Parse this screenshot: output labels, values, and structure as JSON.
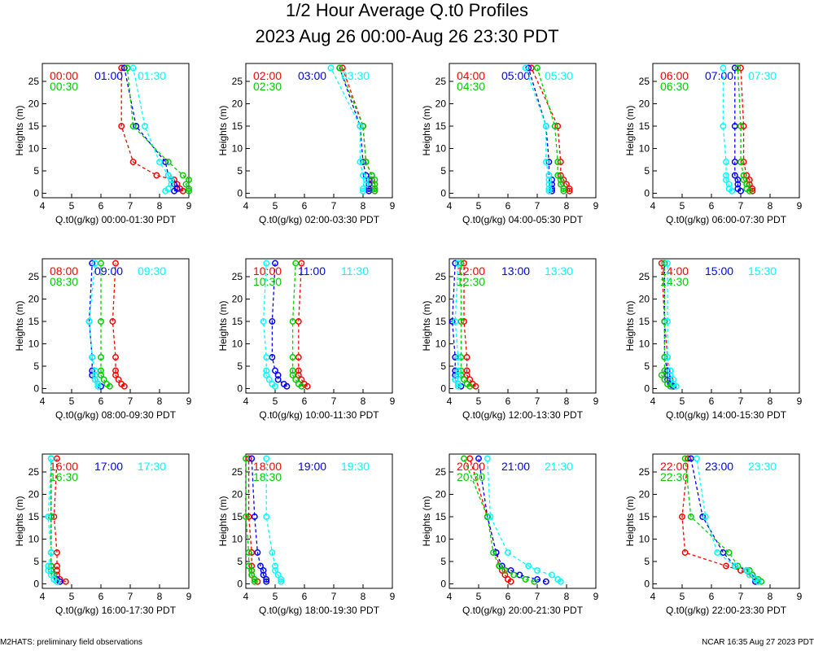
{
  "figure": {
    "title": "1/2 Hour Average Q.t0 Profiles",
    "subtitle": "2023 Aug 26 00:00-Aug 26 23:30 PDT",
    "footer_left": "M2HATS: preliminary field observations",
    "footer_right": "NCAR 16:35 Aug 27 2023 PDT"
  },
  "colors": {
    "s0": "#ff0000",
    "s1": "#0000ff",
    "s2": "#00cc00",
    "s3": "#00ffff"
  },
  "heights": [
    0.5,
    1,
    2,
    3,
    4,
    7,
    15,
    28
  ],
  "chart_data": [
    {
      "type": "line",
      "xlabel": "Q.t0(g/kg) 00:00-01:30 PDT",
      "ylabel": "Heights (m)",
      "xlim": [
        4,
        9
      ],
      "ylim": [
        -1,
        29
      ],
      "xticks": [
        "4",
        "5",
        "6",
        "7",
        "8",
        "9"
      ],
      "yticks": [
        "0",
        "5",
        "10",
        "15",
        "20",
        "25"
      ],
      "series": [
        {
          "name": "00:00",
          "values": [
            8.8,
            8.7,
            8.6,
            8.5,
            7.9,
            7.1,
            6.7,
            6.7
          ]
        },
        {
          "name": "01:00",
          "values": [
            8.5,
            8.6,
            8.5,
            8.4,
            8.3,
            8.2,
            7.2,
            6.8
          ]
        },
        {
          "name": "00:30",
          "values": [
            9.0,
            9.0,
            8.9,
            9.0,
            8.8,
            8.3,
            7.1,
            6.9
          ]
        },
        {
          "name": "01:30",
          "values": [
            8.2,
            8.3,
            8.4,
            8.4,
            8.3,
            8.0,
            7.5,
            7.1
          ]
        }
      ]
    },
    {
      "type": "line",
      "xlabel": "Q.t0(g/kg) 02:00-03:30 PDT",
      "ylabel": "Heights (m)",
      "xlim": [
        4,
        9
      ],
      "ylim": [
        -1,
        29
      ],
      "xticks": [
        "4",
        "5",
        "6",
        "7",
        "8",
        "9"
      ],
      "yticks": [
        "0",
        "5",
        "10",
        "15",
        "20",
        "25"
      ],
      "series": [
        {
          "name": "02:00",
          "values": [
            8.4,
            8.4,
            8.4,
            8.3,
            8.3,
            8.1,
            8.0,
            7.3
          ]
        },
        {
          "name": "03:00",
          "values": [
            8.2,
            8.2,
            8.2,
            8.2,
            8.1,
            8.0,
            7.9,
            7.2
          ]
        },
        {
          "name": "02:30",
          "values": [
            8.4,
            8.4,
            8.4,
            8.4,
            8.3,
            8.1,
            8.0,
            7.2
          ]
        },
        {
          "name": "03:30",
          "values": [
            8.0,
            8.0,
            8.1,
            8.1,
            8.0,
            7.9,
            7.9,
            6.9
          ]
        }
      ]
    },
    {
      "type": "line",
      "xlabel": "Q.t0(g/kg) 04:00-05:30 PDT",
      "ylabel": "Heights (m)",
      "xlim": [
        4,
        9
      ],
      "ylim": [
        -1,
        29
      ],
      "xticks": [
        "4",
        "5",
        "6",
        "7",
        "8",
        "9"
      ],
      "yticks": [
        "0",
        "5",
        "10",
        "15",
        "20",
        "25"
      ],
      "series": [
        {
          "name": "04:00",
          "values": [
            8.1,
            8.1,
            8.0,
            7.9,
            7.8,
            7.8,
            7.7,
            6.8
          ]
        },
        {
          "name": "05:00",
          "values": [
            7.5,
            7.5,
            7.5,
            7.5,
            7.4,
            7.4,
            7.3,
            6.7
          ]
        },
        {
          "name": "04:30",
          "values": [
            7.9,
            7.9,
            7.8,
            7.8,
            7.7,
            7.7,
            7.6,
            7.0
          ]
        },
        {
          "name": "05:30",
          "values": [
            7.4,
            7.4,
            7.4,
            7.4,
            7.4,
            7.3,
            7.3,
            6.6
          ]
        }
      ]
    },
    {
      "type": "line",
      "xlabel": "Q.t0(g/kg) 06:00-07:30 PDT",
      "ylabel": "Heights (m)",
      "xlim": [
        4,
        9
      ],
      "ylim": [
        -1,
        29
      ],
      "xticks": [
        "4",
        "5",
        "6",
        "7",
        "8",
        "9"
      ],
      "yticks": [
        "0",
        "5",
        "10",
        "15",
        "20",
        "25"
      ],
      "series": [
        {
          "name": "06:00",
          "values": [
            7.4,
            7.4,
            7.3,
            7.3,
            7.2,
            7.1,
            7.1,
            7.0
          ]
        },
        {
          "name": "07:00",
          "values": [
            7.0,
            6.9,
            6.9,
            6.9,
            6.8,
            6.8,
            6.8,
            6.8
          ]
        },
        {
          "name": "06:30",
          "values": [
            7.3,
            7.2,
            7.2,
            7.1,
            7.1,
            7.0,
            7.0,
            6.9
          ]
        },
        {
          "name": "07:30",
          "values": [
            6.7,
            6.6,
            6.6,
            6.5,
            6.5,
            6.5,
            6.4,
            6.4
          ]
        }
      ]
    },
    {
      "type": "line",
      "xlabel": "Q.t0(g/kg) 08:00-09:30 PDT",
      "ylabel": "Heights (m)",
      "xlim": [
        4,
        9
      ],
      "ylim": [
        -1,
        29
      ],
      "xticks": [
        "4",
        "5",
        "6",
        "7",
        "8",
        "9"
      ],
      "yticks": [
        "0",
        "5",
        "10",
        "15",
        "20",
        "25"
      ],
      "series": [
        {
          "name": "08:00",
          "values": [
            6.8,
            6.7,
            6.6,
            6.5,
            6.5,
            6.5,
            6.4,
            6.5
          ]
        },
        {
          "name": "09:00",
          "values": [
            6.0,
            5.9,
            5.8,
            5.7,
            5.7,
            5.7,
            5.6,
            5.7
          ]
        },
        {
          "name": "08:30",
          "values": [
            6.3,
            6.2,
            6.1,
            6.0,
            6.0,
            6.0,
            6.0,
            6.0
          ]
        },
        {
          "name": "09:30",
          "values": [
            5.9,
            5.9,
            5.8,
            5.8,
            5.8,
            5.7,
            5.6,
            5.8
          ]
        }
      ]
    },
    {
      "type": "line",
      "xlabel": "Q.t0(g/kg) 10:00-11:30 PDT",
      "ylabel": "Heights (m)",
      "xlim": [
        4,
        9
      ],
      "ylim": [
        -1,
        29
      ],
      "xticks": [
        "4",
        "5",
        "6",
        "7",
        "8",
        "9"
      ],
      "yticks": [
        "0",
        "5",
        "10",
        "15",
        "20",
        "25"
      ],
      "series": [
        {
          "name": "10:00",
          "values": [
            6.1,
            6.0,
            5.9,
            5.8,
            5.8,
            5.8,
            5.8,
            5.9
          ]
        },
        {
          "name": "11:00",
          "values": [
            5.4,
            5.3,
            5.1,
            5.1,
            5.0,
            4.9,
            4.9,
            5.0
          ]
        },
        {
          "name": "10:30",
          "values": [
            5.9,
            5.8,
            5.7,
            5.6,
            5.6,
            5.6,
            5.6,
            5.7
          ]
        },
        {
          "name": "11:30",
          "values": [
            5.0,
            4.9,
            4.8,
            4.7,
            4.7,
            4.7,
            4.6,
            4.7
          ]
        }
      ]
    },
    {
      "type": "line",
      "xlabel": "Q.t0(g/kg) 12:00-13:30 PDT",
      "ylabel": "Heights (m)",
      "xlim": [
        4,
        9
      ],
      "ylim": [
        -1,
        29
      ],
      "xticks": [
        "4",
        "5",
        "6",
        "7",
        "8",
        "9"
      ],
      "yticks": [
        "0",
        "5",
        "10",
        "15",
        "20",
        "25"
      ],
      "series": [
        {
          "name": "12:00",
          "values": [
            4.9,
            4.8,
            4.7,
            4.6,
            4.6,
            4.6,
            4.5,
            4.5
          ]
        },
        {
          "name": "13:00",
          "values": [
            4.4,
            4.3,
            4.2,
            4.2,
            4.2,
            4.2,
            4.1,
            4.2
          ]
        },
        {
          "name": "12:30",
          "values": [
            4.7,
            4.6,
            4.5,
            4.4,
            4.4,
            4.4,
            4.4,
            4.4
          ]
        },
        {
          "name": "13:30",
          "values": [
            4.3,
            4.3,
            4.2,
            4.3,
            4.3,
            4.3,
            4.2,
            4.3
          ]
        }
      ]
    },
    {
      "type": "line",
      "xlabel": "Q.t0(g/kg) 14:00-15:30 PDT",
      "ylabel": "Heights (m)",
      "xlim": [
        4,
        9
      ],
      "ylim": [
        -1,
        29
      ],
      "xticks": [
        "4",
        "5",
        "6",
        "7",
        "8",
        "9"
      ],
      "yticks": [
        "0",
        "5",
        "10",
        "15",
        "20",
        "25"
      ],
      "series": [
        {
          "name": "14:00",
          "values": [
            4.7,
            4.6,
            4.6,
            4.5,
            4.5,
            4.5,
            4.4,
            4.3
          ]
        },
        {
          "name": "15:00",
          "values": [
            4.7,
            4.6,
            4.5,
            4.5,
            4.5,
            4.4,
            4.4,
            4.4
          ]
        },
        {
          "name": "14:30",
          "values": [
            4.6,
            4.5,
            4.4,
            4.3,
            4.4,
            4.4,
            4.4,
            4.4
          ]
        },
        {
          "name": "15:30",
          "values": [
            4.8,
            4.7,
            4.7,
            4.6,
            4.6,
            4.5,
            4.5,
            4.5
          ]
        }
      ]
    },
    {
      "type": "line",
      "xlabel": "Q.t0(g/kg) 16:00-17:30 PDT",
      "ylabel": "Heights (m)",
      "xlim": [
        4,
        9
      ],
      "ylim": [
        -1,
        29
      ],
      "xticks": [
        "4",
        "5",
        "6",
        "7",
        "8",
        "9"
      ],
      "yticks": [
        "0",
        "5",
        "10",
        "15",
        "20",
        "25"
      ],
      "series": [
        {
          "name": "16:00",
          "values": [
            4.8,
            4.6,
            4.5,
            4.5,
            4.5,
            4.5,
            4.4,
            4.5
          ]
        },
        {
          "name": "17:00",
          "values": [
            4.6,
            4.5,
            4.4,
            4.3,
            4.3,
            4.3,
            4.3,
            4.3
          ]
        },
        {
          "name": "16:30",
          "values": [
            4.5,
            4.4,
            4.4,
            4.3,
            4.3,
            4.3,
            4.3,
            4.3
          ]
        },
        {
          "name": "17:30",
          "values": [
            4.5,
            4.4,
            4.3,
            4.2,
            4.2,
            4.3,
            4.2,
            4.3
          ]
        }
      ]
    },
    {
      "type": "line",
      "xlabel": "Q.t0(g/kg) 18:00-19:30 PDT",
      "ylabel": "Heights (m)",
      "xlim": [
        4,
        9
      ],
      "ylim": [
        -1,
        29
      ],
      "xticks": [
        "4",
        "5",
        "6",
        "7",
        "8",
        "9"
      ],
      "yticks": [
        "0",
        "5",
        "10",
        "15",
        "20",
        "25"
      ],
      "series": [
        {
          "name": "18:00",
          "values": [
            4.4,
            4.3,
            4.2,
            4.2,
            4.2,
            4.2,
            4.1,
            4.1
          ]
        },
        {
          "name": "19:00",
          "values": [
            4.7,
            4.7,
            4.6,
            4.6,
            4.5,
            4.4,
            4.3,
            4.2
          ]
        },
        {
          "name": "18:30",
          "values": [
            4.3,
            4.3,
            4.2,
            4.2,
            4.1,
            4.1,
            4.0,
            4.0
          ]
        },
        {
          "name": "19:30",
          "values": [
            5.2,
            5.2,
            5.1,
            5.0,
            5.0,
            4.9,
            4.7,
            4.7
          ]
        }
      ]
    },
    {
      "type": "line",
      "xlabel": "Q.t0(g/kg) 20:00-21:30 PDT",
      "ylabel": "Heights (m)",
      "xlim": [
        4,
        9
      ],
      "ylim": [
        -1,
        29
      ],
      "xticks": [
        "4",
        "5",
        "6",
        "7",
        "8",
        "9"
      ],
      "yticks": [
        "0",
        "5",
        "10",
        "15",
        "20",
        "25"
      ],
      "series": [
        {
          "name": "20:00",
          "values": [
            6.1,
            6.0,
            5.9,
            5.8,
            5.7,
            5.6,
            5.3,
            4.7
          ]
        },
        {
          "name": "21:00",
          "values": [
            7.3,
            7.0,
            6.4,
            6.1,
            5.8,
            5.6,
            5.3,
            5.0
          ]
        },
        {
          "name": "20:30",
          "values": [
            6.9,
            6.6,
            6.2,
            5.9,
            5.7,
            5.5,
            5.3,
            4.5
          ]
        },
        {
          "name": "21:30",
          "values": [
            7.8,
            7.7,
            7.5,
            7.0,
            6.7,
            6.0,
            5.4,
            5.3
          ]
        }
      ]
    },
    {
      "type": "line",
      "xlabel": "Q.t0(g/kg) 22:00-23:30 PDT",
      "ylabel": "Heights (m)",
      "xlim": [
        4,
        9
      ],
      "ylim": [
        -1,
        29
      ],
      "xticks": [
        "4",
        "5",
        "6",
        "7",
        "8",
        "9"
      ],
      "yticks": [
        "0",
        "5",
        "10",
        "15",
        "20",
        "25"
      ],
      "series": [
        {
          "name": "22:00",
          "values": [
            7.6,
            7.5,
            7.3,
            7.0,
            6.5,
            5.1,
            5.0,
            5.2
          ]
        },
        {
          "name": "23:00",
          "values": [
            7.5,
            7.5,
            7.4,
            7.2,
            6.8,
            6.4,
            5.7,
            5.3
          ]
        },
        {
          "name": "22:30",
          "values": [
            7.7,
            7.6,
            7.4,
            7.3,
            6.9,
            6.6,
            5.3,
            5.1
          ]
        },
        {
          "name": "23:30",
          "values": [
            7.6,
            7.5,
            7.3,
            7.2,
            6.8,
            6.2,
            5.8,
            5.5
          ]
        }
      ]
    }
  ]
}
